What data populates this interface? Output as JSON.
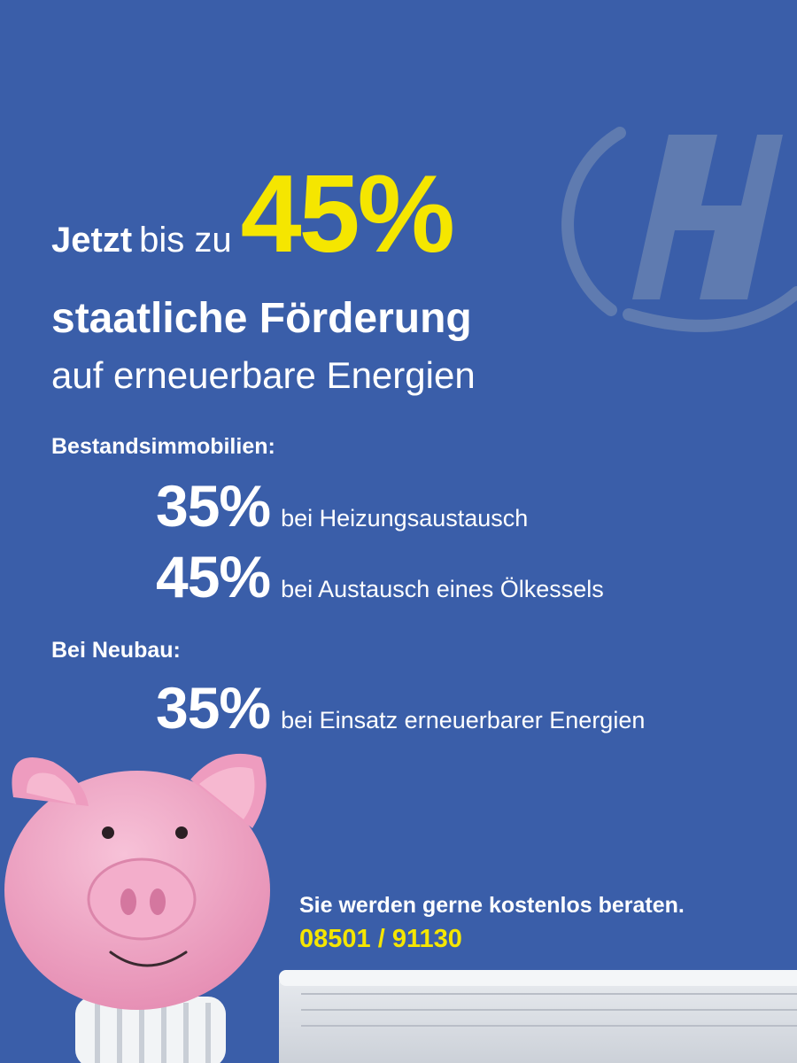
{
  "headline": {
    "word_bold": "Jetzt",
    "word_regular": "bis zu",
    "big_percent": "45%",
    "line2": "staatliche Förderung",
    "line3": "auf erneuerbare Energien"
  },
  "sections": [
    {
      "label": "Bestandsimmobilien:",
      "rates": [
        {
          "percent": "35%",
          "text": "bei Heizungsaustausch"
        },
        {
          "percent": "45%",
          "text": "bei Austausch eines Ölkessels"
        }
      ]
    },
    {
      "label": "Bei Neubau:",
      "rates": [
        {
          "percent": "35%",
          "text": "bei Einsatz erneuerbarer Energien"
        }
      ]
    }
  ],
  "cta": {
    "text": "Sie werden gerne kostenlos beraten.",
    "phone": "08501 / 91130"
  },
  "icons": [
    "h-logo-icon",
    "piggy-bank-image",
    "radiator-image"
  ],
  "colors": {
    "background": "#3a5ea9",
    "accent": "#f5e600",
    "text": "#ffffff",
    "logo": "#5f7bb0",
    "piggy": "#eea3c1"
  }
}
